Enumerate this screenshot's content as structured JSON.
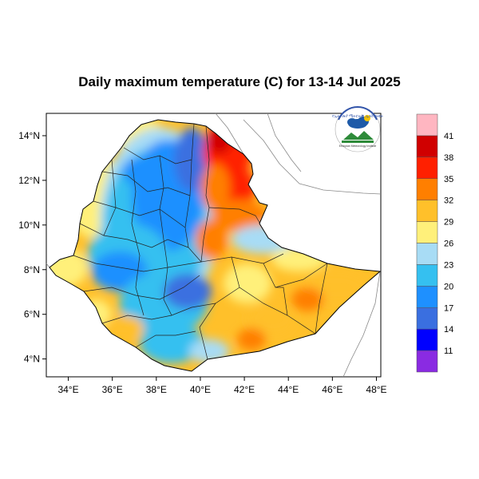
{
  "title": "Daily maximum temperature (C) for 13-14 Jul 2025",
  "logo": {
    "top_text": "የኢትዮጵያ ሜትሮሎጂ ኢንስቲትዩት",
    "bottom_text": "Ethiopian Meteorology Institute"
  },
  "axes": {
    "x_ticks": [
      {
        "value": 34,
        "label": "34°E"
      },
      {
        "value": 36,
        "label": "36°E"
      },
      {
        "value": 38,
        "label": "38°E"
      },
      {
        "value": 40,
        "label": "40°E"
      },
      {
        "value": 42,
        "label": "42°E"
      },
      {
        "value": 44,
        "label": "44°E"
      },
      {
        "value": 46,
        "label": "46°E"
      },
      {
        "value": 48,
        "label": "48°E"
      }
    ],
    "y_ticks": [
      {
        "value": 14,
        "label": "14°N"
      },
      {
        "value": 12,
        "label": "12°N"
      },
      {
        "value": 10,
        "label": "10°N"
      },
      {
        "value": 8,
        "label": "8°N"
      },
      {
        "value": 6,
        "label": "6°N"
      },
      {
        "value": 4,
        "label": "4°N"
      }
    ],
    "lon_range": [
      33,
      48.2
    ],
    "lat_range": [
      3.2,
      15
    ]
  },
  "colorbar": {
    "colors": [
      "#8a2be2",
      "#0000ff",
      "#3a6fe0",
      "#1e90ff",
      "#35c0f0",
      "#a8dcf5",
      "#fff07a",
      "#ffc02a",
      "#ff7f00",
      "#ff2000",
      "#d00000",
      "#ffb6c1"
    ],
    "labels": [
      "11",
      "14",
      "17",
      "20",
      "23",
      "26",
      "29",
      "32",
      "35",
      "38",
      "41"
    ]
  },
  "colors": {
    "very_hot": "#d00000",
    "hot": "#ff2000",
    "warm_orange": "#ff7f00",
    "orange": "#ffc02a",
    "yellow": "#fff07a",
    "light_blue": "#a8dcf5",
    "sky_blue": "#35c0f0",
    "blue": "#1e90ff",
    "dark_blue": "#3a6fe0"
  }
}
